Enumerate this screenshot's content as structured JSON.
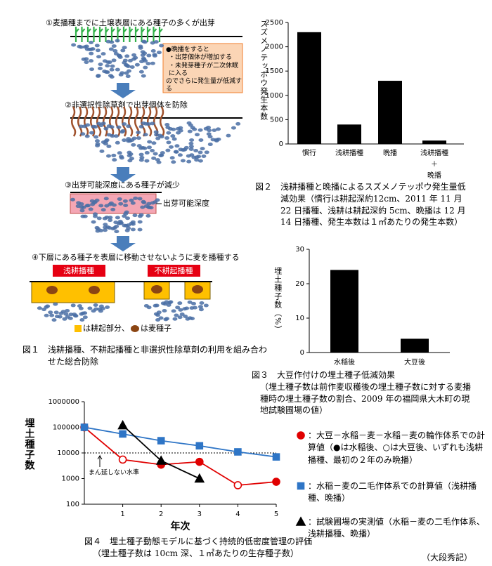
{
  "figure1": {
    "steps": [
      "①麦播種までに土壌表層にある種子の多くが出芽",
      "②非選択性除草剤で出芽個体を防除",
      "③出芽可能深度にある種子が減少",
      "④下層にある種子を表層に移動させないように麦を播種する"
    ],
    "note": [
      "●晩播をすると",
      "・出芽個体が増加する",
      "・未発芽種子が二次休眠に入る",
      "のでさらに発生量が低減する"
    ],
    "depth_label": "出芽可能深度",
    "methods": [
      "浅耕播種",
      "不耕起播種"
    ],
    "legend": [
      "は耕起部分、",
      "は麦種子"
    ],
    "caption": "図１　浅耕播種、不耕起播種と非選択性除草剤の利用を組み合わせた総合防除"
  },
  "chart_data": [
    {
      "type": "bar",
      "ylabel": "スズメノテッポウ発生本数",
      "categories": [
        "慣行",
        "浅耕播種",
        "晩播",
        "浅耕播種\n＋\n晩播"
      ],
      "values": [
        2300,
        400,
        1300,
        70
      ],
      "color": "#000000",
      "ylim": [
        0,
        2500
      ],
      "yticks": [
        0,
        500,
        1000,
        1500,
        2000,
        2500
      ],
      "caption": "図２　浅耕播種と晩播によるスズメノテッポウ発生量低減効果（慣行は耕起深約12cm、2011 年 11 月 22 日播種、浅耕は耕起深約 5cm、晩播は 12 月 14 日播種、発生本数は１㎡あたりの発生本数）"
    },
    {
      "type": "bar",
      "ylabel": "埋土種子数（%）",
      "categories": [
        "水稲後",
        "大豆後"
      ],
      "values": [
        24,
        4
      ],
      "color": "#000000",
      "ylim": [
        0,
        30
      ],
      "yticks": [
        0,
        10,
        20,
        30
      ],
      "caption": "図３　大豆作付けの埋土種子低減効果",
      "note": "（埋土種子数は前作麦収穫後の埋土種子数に対する麦播種時の埋土種子数の割合、2009 年の福岡県大木町の現地試験圃場の値）"
    },
    {
      "type": "line",
      "xlabel": "年次",
      "ylabel": "埋土種子数",
      "log_y": true,
      "x": [
        0,
        1,
        2,
        3,
        4,
        5
      ],
      "xlim": [
        0,
        5
      ],
      "xticks": [
        1,
        2,
        3,
        4,
        5
      ],
      "ylim": [
        100,
        1000000
      ],
      "yticks": [
        100,
        1000,
        10000,
        100000,
        1000000
      ],
      "threshold": 10000,
      "threshold_label": "まん延しない水準",
      "series": [
        {
          "name": "：大豆－水稲－麦－水稲－麦の輪作体系での計算値（●は水稲後、○は大豆後、いずれも浅耕播種、最初の２年のみ晩播）",
          "color": "#e00000",
          "marker": "circle",
          "filled": [
            true,
            false,
            true,
            true,
            false,
            true
          ],
          "values": [
            100000,
            5500,
            3500,
            4500,
            550,
            750
          ]
        },
        {
          "name": "：水稲－麦の二毛作体系での計算値（浅耕播種、晩播）",
          "color": "#2e75c6",
          "marker": "square",
          "values": [
            100000,
            55000,
            30000,
            19000,
            11000,
            7000
          ]
        },
        {
          "name": "：試験圃場の実測値（水稲－麦の二毛作体系、浅耕播種、晩播）",
          "color": "#000000",
          "marker": "triangle",
          "values": [
            null,
            120000,
            5000,
            1000,
            null,
            null
          ]
        }
      ],
      "caption": "図４　埋土種子動態モデルに基づく持続的低密度管理の評価",
      "note": "（埋土種子数は 10cm 深、１㎡あたりの生存種子数）"
    }
  ],
  "author": "（大段秀記）"
}
